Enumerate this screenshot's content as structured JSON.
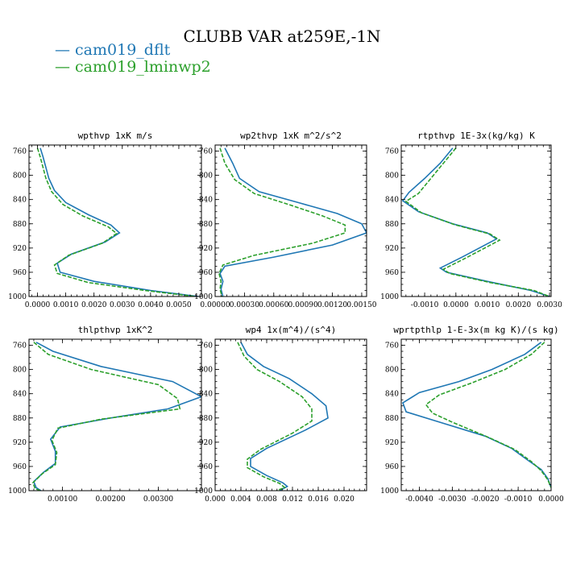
{
  "figure": {
    "title": "CLUBB VAR at259E,-1N",
    "colors": {
      "blue": "#1f77b4",
      "green": "#2ca02c"
    },
    "legend": [
      {
        "label": "— cam019_dflt",
        "color": "#1f77b4"
      },
      {
        "label": "— cam019_lminwp2",
        "color": "#2ca02c"
      }
    ]
  },
  "chart_data": [
    {
      "type": "line",
      "title": "wpthvp  1xK m/s",
      "xlim": [
        -0.0003,
        0.0058
      ],
      "ylim": [
        1000,
        750
      ],
      "xticks": [
        0,
        0.001,
        0.002,
        0.003,
        0.004,
        0.005
      ],
      "xtick_labels": [
        "0.0000",
        "0.0010",
        "0.0020",
        "0.0030",
        "0.0040",
        "0.0050"
      ],
      "yticks": [
        760,
        800,
        840,
        880,
        920,
        960,
        1000
      ],
      "ytick_labels": [
        "760",
        "800",
        "840",
        "880",
        "920",
        "960",
        "1000"
      ],
      "series": [
        {
          "name": "cam019_dflt",
          "color": "#1f77b4",
          "dash": false,
          "x": [
            0.0001,
            0.0002,
            0.0004,
            0.0006,
            0.001,
            0.0018,
            0.0026,
            0.0029,
            0.0024,
            0.0012,
            0.0007,
            0.0008,
            0.002,
            0.004,
            0.0057
          ],
          "y": [
            755,
            770,
            805,
            825,
            845,
            865,
            882,
            895,
            910,
            930,
            945,
            960,
            975,
            990,
            1000
          ]
        },
        {
          "name": "cam019_lminwp2",
          "color": "#2ca02c",
          "dash": true,
          "x": [
            0.0,
            0.0001,
            0.0003,
            0.0005,
            0.0009,
            0.0016,
            0.0025,
            0.0028,
            0.0023,
            0.0011,
            0.0006,
            0.0007,
            0.0018,
            0.0038,
            0.0056
          ],
          "y": [
            755,
            770,
            805,
            827,
            848,
            867,
            885,
            896,
            912,
            932,
            948,
            962,
            977,
            990,
            1000
          ]
        }
      ]
    },
    {
      "type": "line",
      "title": "wp2thvp  1xK m^2/s^2",
      "xlim": [
        0,
        0.00155
      ],
      "ylim": [
        1000,
        750
      ],
      "xticks": [
        0,
        0.0003,
        0.0006,
        0.0009,
        0.0012,
        0.0015
      ],
      "xtick_labels": [
        "0.00000",
        "0.00030",
        "0.00060",
        "0.00090",
        "0.00120",
        "0.00150"
      ],
      "yticks": [
        760,
        800,
        840,
        880,
        920,
        960,
        1000
      ],
      "ytick_labels": [
        "760",
        "800",
        "840",
        "880",
        "920",
        "960",
        "1000"
      ],
      "series": [
        {
          "name": "cam019_dflt",
          "color": "#1f77b4",
          "dash": false,
          "x": [
            0.0001,
            0.00018,
            0.00025,
            0.00045,
            0.00085,
            0.00125,
            0.0015,
            0.00155,
            0.0012,
            0.0006,
            0.0001,
            5e-05,
            8e-05,
            6e-05,
            8e-05
          ],
          "y": [
            755,
            780,
            805,
            827,
            845,
            863,
            880,
            895,
            915,
            935,
            950,
            962,
            975,
            988,
            1000
          ]
        },
        {
          "name": "cam019_lminwp2",
          "color": "#2ca02c",
          "dash": true,
          "x": [
            5e-05,
            0.0001,
            0.0002,
            0.0004,
            0.00075,
            0.0011,
            0.00133,
            0.00133,
            0.001,
            0.0004,
            8e-05,
            4e-05,
            6e-05,
            5e-05,
            7e-05
          ],
          "y": [
            755,
            780,
            807,
            830,
            848,
            867,
            882,
            895,
            912,
            932,
            948,
            962,
            975,
            988,
            1000
          ]
        }
      ]
    },
    {
      "type": "line",
      "title": "rtpthvp  1E-3x(kg/kg) K",
      "xlim": [
        -0.00175,
        0.00305
      ],
      "ylim": [
        1000,
        750
      ],
      "xticks": [
        -0.001,
        0,
        0.001,
        0.002,
        0.003
      ],
      "xtick_labels": [
        "-0.0010",
        "0.0000",
        "0.0010",
        "0.0020",
        "0.0030"
      ],
      "yticks": [
        760,
        800,
        840,
        880,
        920,
        960,
        1000
      ],
      "ytick_labels": [
        "760",
        "800",
        "840",
        "880",
        "920",
        "960",
        "1000"
      ],
      "series": [
        {
          "name": "cam019_dflt",
          "color": "#1f77b4",
          "dash": false,
          "x": [
            -0.0001,
            -0.0005,
            -0.001,
            -0.0015,
            -0.0017,
            -0.0012,
            -0.0001,
            0.001,
            0.0013,
            0.0002,
            -0.0005,
            -0.0003,
            0.001,
            0.0024,
            0.003
          ],
          "y": [
            755,
            780,
            805,
            828,
            842,
            860,
            880,
            895,
            905,
            935,
            953,
            960,
            975,
            990,
            1000
          ]
        },
        {
          "name": "cam019_lminwp2",
          "color": "#2ca02c",
          "dash": true,
          "x": [
            0.0,
            -0.0004,
            -0.0008,
            -0.0012,
            -0.0016,
            -0.0011,
            0.0,
            0.0011,
            0.0014,
            0.0003,
            -0.0004,
            -0.0002,
            0.0011,
            0.0025,
            0.003
          ],
          "y": [
            755,
            780,
            805,
            830,
            843,
            862,
            882,
            897,
            907,
            937,
            955,
            962,
            977,
            990,
            1000
          ]
        }
      ]
    },
    {
      "type": "line",
      "title": "thlpthvp  1xK^2",
      "xlim": [
        0.0003,
        0.0039
      ],
      "ylim": [
        1000,
        750
      ],
      "xticks": [
        0.001,
        0.002,
        0.003
      ],
      "xtick_labels": [
        "0.00100",
        "0.00200",
        "0.00300"
      ],
      "yticks": [
        760,
        800,
        840,
        880,
        920,
        960,
        1000
      ],
      "ytick_labels": [
        "760",
        "800",
        "840",
        "880",
        "920",
        "960",
        "1000"
      ],
      "series": [
        {
          "name": "cam019_dflt",
          "color": "#1f77b4",
          "dash": false,
          "x": [
            0.00045,
            0.0008,
            0.0018,
            0.0033,
            0.0039,
            0.0032,
            0.002,
            0.00095,
            0.00075,
            0.00085,
            0.00085,
            0.0006,
            0.0004,
            0.00045,
            0.00055
          ],
          "y": [
            755,
            770,
            795,
            820,
            845,
            865,
            880,
            895,
            915,
            935,
            955,
            970,
            985,
            995,
            1000
          ]
        },
        {
          "name": "cam019_lminwp2",
          "color": "#2ca02c",
          "dash": true,
          "x": [
            0.0004,
            0.0007,
            0.0016,
            0.003,
            0.0034,
            0.00345,
            0.0018,
            0.0009,
            0.00078,
            0.00088,
            0.00085,
            0.00058,
            0.00038,
            0.00043,
            0.00055
          ],
          "y": [
            755,
            775,
            800,
            825,
            848,
            865,
            882,
            897,
            917,
            937,
            957,
            972,
            987,
            997,
            1000
          ]
        }
      ]
    },
    {
      "type": "line",
      "title": "wp4  1x(m^4)/(s^4)",
      "xlim": [
        0,
        0.0235
      ],
      "ylim": [
        1000,
        750
      ],
      "xticks": [
        0,
        0.004,
        0.008,
        0.012,
        0.016,
        0.02
      ],
      "xtick_labels": [
        "0.000",
        "0.004",
        "0.008",
        "0.012",
        "0.016",
        "0.020"
      ],
      "yticks": [
        760,
        800,
        840,
        880,
        920,
        960,
        1000
      ],
      "ytick_labels": [
        "760",
        "800",
        "840",
        "880",
        "920",
        "960",
        "1000"
      ],
      "series": [
        {
          "name": "cam019_dflt",
          "color": "#1f77b4",
          "dash": false,
          "x": [
            0.004,
            0.005,
            0.0075,
            0.0115,
            0.015,
            0.0172,
            0.0175,
            0.014,
            0.008,
            0.0055,
            0.0055,
            0.008,
            0.0105,
            0.0112,
            0.01
          ],
          "y": [
            755,
            775,
            795,
            815,
            840,
            860,
            880,
            900,
            930,
            947,
            960,
            975,
            987,
            993,
            1000
          ]
        },
        {
          "name": "cam019_lminwp2",
          "color": "#2ca02c",
          "dash": true,
          "x": [
            0.0035,
            0.0045,
            0.0065,
            0.01,
            0.0135,
            0.015,
            0.015,
            0.012,
            0.007,
            0.005,
            0.005,
            0.0075,
            0.01,
            0.0108,
            0.0095
          ],
          "y": [
            755,
            778,
            800,
            820,
            845,
            865,
            885,
            905,
            932,
            948,
            962,
            977,
            988,
            995,
            1000
          ]
        }
      ]
    },
    {
      "type": "line",
      "title": "wprtpthlp  1-E-3x(m kg K)/(s kg)",
      "xlim": [
        -0.00455,
        0.0
      ],
      "ylim": [
        1000,
        750
      ],
      "xticks": [
        -0.004,
        -0.003,
        -0.002,
        -0.001,
        0
      ],
      "xtick_labels": [
        "-0.0040",
        "-0.0030",
        "-0.0020",
        "-0.0010",
        "0.0000"
      ],
      "yticks": [
        760,
        800,
        840,
        880,
        920,
        960,
        1000
      ],
      "ytick_labels": [
        "760",
        "800",
        "840",
        "880",
        "920",
        "960",
        "1000"
      ],
      "series": [
        {
          "name": "cam019_dflt",
          "color": "#1f77b4",
          "dash": false,
          "x": [
            -0.0003,
            -0.0008,
            -0.0018,
            -0.0028,
            -0.004,
            -0.0045,
            -0.0044,
            -0.0035,
            -0.002,
            -0.0012,
            -0.0007,
            -0.0003,
            -0.0001,
            0.0
          ],
          "y": [
            755,
            775,
            800,
            820,
            838,
            855,
            870,
            885,
            910,
            930,
            950,
            965,
            980,
            995
          ]
        },
        {
          "name": "cam019_lminwp2",
          "color": "#2ca02c",
          "dash": true,
          "x": [
            -0.0002,
            -0.0006,
            -0.0014,
            -0.0024,
            -0.0034,
            -0.0038,
            -0.0036,
            -0.003,
            -0.0019,
            -0.0011,
            -0.0006,
            -0.0003,
            -0.0001,
            0.0
          ],
          "y": [
            755,
            775,
            800,
            822,
            842,
            858,
            872,
            887,
            912,
            932,
            952,
            967,
            982,
            995
          ]
        }
      ]
    }
  ]
}
